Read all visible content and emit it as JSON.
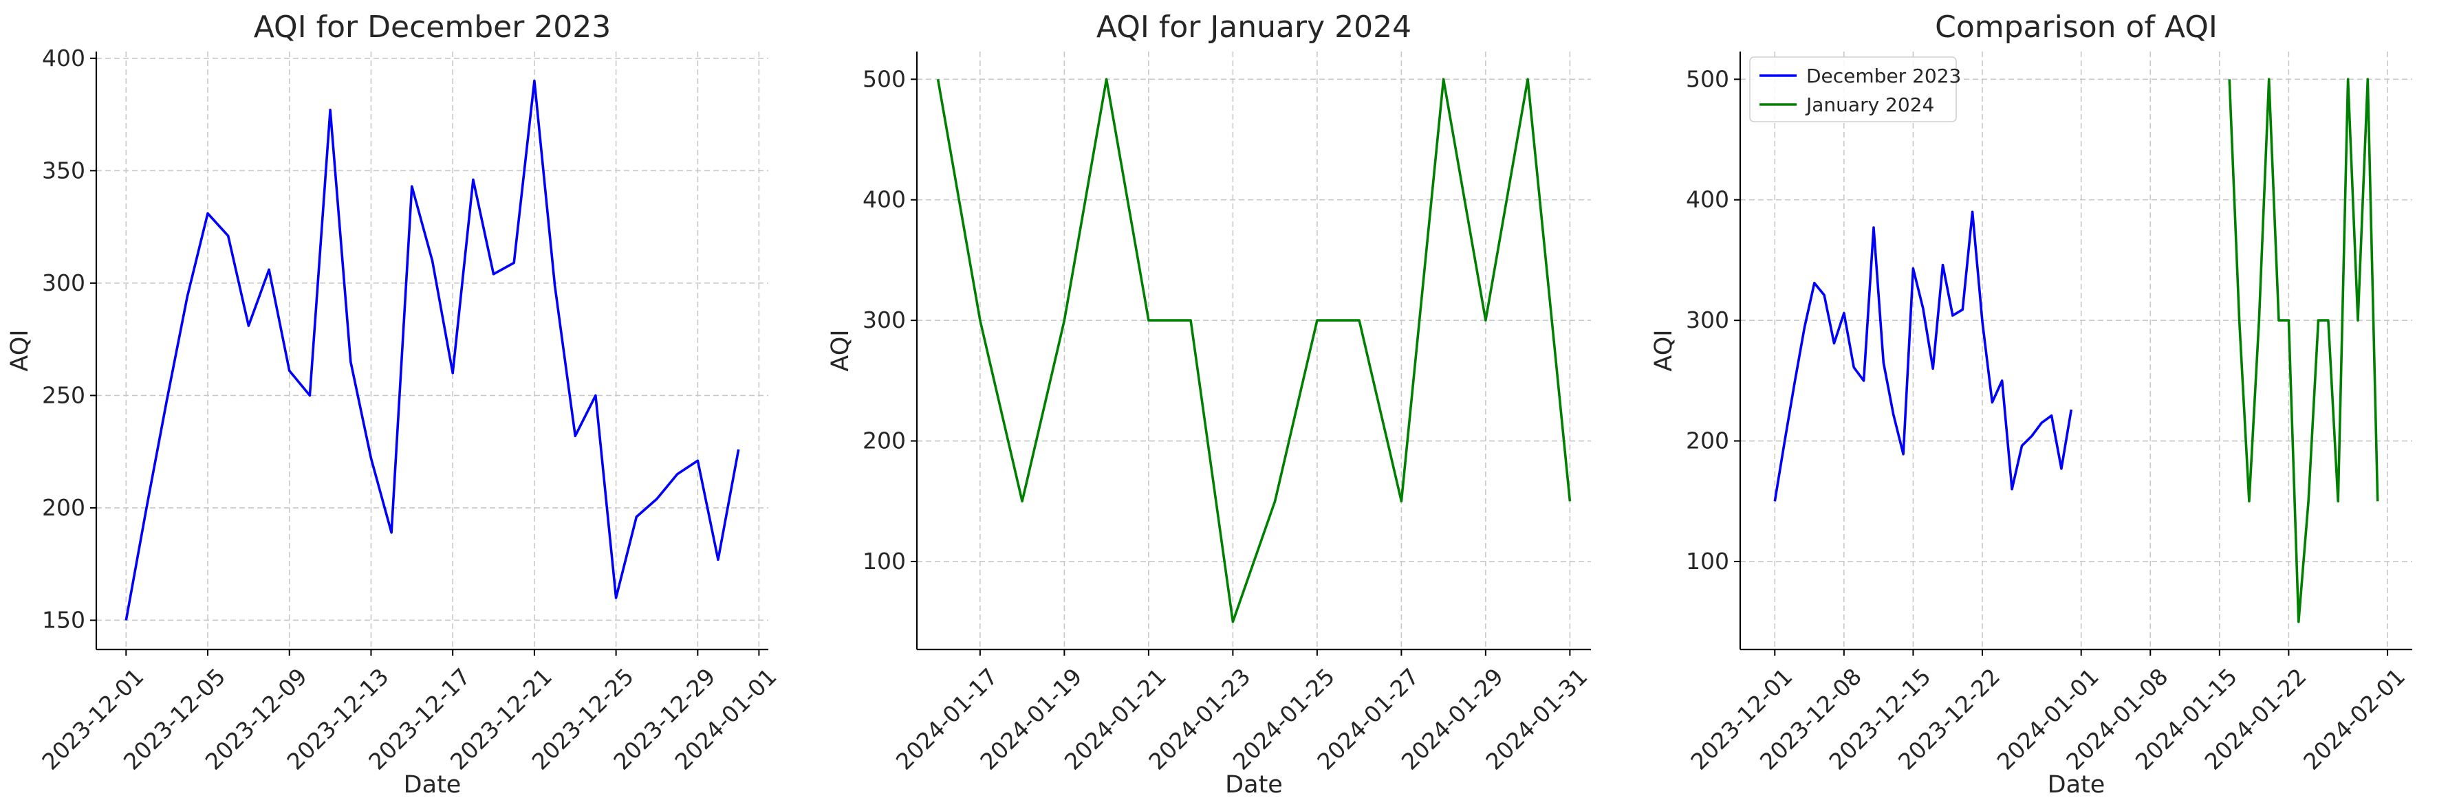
{
  "chart_data": [
    {
      "type": "line",
      "title": "AQI for December 2023",
      "xlabel": "Date",
      "ylabel": "AQI",
      "ylim": [
        137,
        403
      ],
      "xlim": [
        "2023-11-29T13:00",
        "2024-01-01T11:00"
      ],
      "yticks": [
        150,
        200,
        250,
        300,
        350,
        400
      ],
      "xticks": [
        "2023-12-01",
        "2023-12-05",
        "2023-12-09",
        "2023-12-13",
        "2023-12-17",
        "2023-12-21",
        "2023-12-25",
        "2023-12-29",
        "2024-01-01"
      ],
      "grid": true,
      "series": [
        {
          "color": "#0000ff",
          "points": [
            [
              "2023-12-01",
              150
            ],
            [
              "2023-12-02",
              200
            ],
            [
              "2023-12-03",
              248
            ],
            [
              "2023-12-04",
              294
            ],
            [
              "2023-12-05",
              331
            ],
            [
              "2023-12-06",
              321
            ],
            [
              "2023-12-07",
              281
            ],
            [
              "2023-12-08",
              306
            ],
            [
              "2023-12-09",
              261
            ],
            [
              "2023-12-10",
              250
            ],
            [
              "2023-12-11",
              377
            ],
            [
              "2023-12-12",
              265
            ],
            [
              "2023-12-13",
              222
            ],
            [
              "2023-12-14",
              189
            ],
            [
              "2023-12-15",
              343
            ],
            [
              "2023-12-16",
              310
            ],
            [
              "2023-12-17",
              260
            ],
            [
              "2023-12-18",
              346
            ],
            [
              "2023-12-19",
              304
            ],
            [
              "2023-12-20",
              309
            ],
            [
              "2023-12-21",
              390
            ],
            [
              "2023-12-22",
              299
            ],
            [
              "2023-12-23",
              232
            ],
            [
              "2023-12-24",
              250
            ],
            [
              "2023-12-25",
              160
            ],
            [
              "2023-12-26",
              196
            ],
            [
              "2023-12-27",
              204
            ],
            [
              "2023-12-28",
              215
            ],
            [
              "2023-12-29",
              221
            ],
            [
              "2023-12-30",
              177
            ],
            [
              "2023-12-31",
              226
            ]
          ]
        }
      ]
    },
    {
      "type": "line",
      "title": "AQI for January 2024",
      "xlabel": "Date",
      "ylabel": "AQI",
      "ylim": [
        27,
        523
      ],
      "xlim": [
        "2024-01-15T12:00",
        "2024-01-31T12:00"
      ],
      "yticks": [
        100,
        200,
        300,
        400,
        500
      ],
      "xticks": [
        "2024-01-17",
        "2024-01-19",
        "2024-01-21",
        "2024-01-23",
        "2024-01-25",
        "2024-01-27",
        "2024-01-29",
        "2024-01-31"
      ],
      "grid": true,
      "series": [
        {
          "color": "#008000",
          "points": [
            [
              "2024-01-16",
              500
            ],
            [
              "2024-01-17",
              300
            ],
            [
              "2024-01-18",
              150
            ],
            [
              "2024-01-19",
              300
            ],
            [
              "2024-01-20",
              500
            ],
            [
              "2024-01-21",
              300
            ],
            [
              "2024-01-22",
              300
            ],
            [
              "2024-01-23",
              50
            ],
            [
              "2024-01-24",
              150
            ],
            [
              "2024-01-25",
              300
            ],
            [
              "2024-01-26",
              300
            ],
            [
              "2024-01-27",
              150
            ],
            [
              "2024-01-28",
              500
            ],
            [
              "2024-01-29",
              300
            ],
            [
              "2024-01-30",
              500
            ],
            [
              "2024-01-31",
              150
            ]
          ]
        }
      ]
    },
    {
      "type": "line",
      "title": "Comparison of AQI",
      "xlabel": "Date",
      "ylabel": "AQI",
      "ylim": [
        27,
        523
      ],
      "xlim": [
        "2023-11-27T12:00",
        "2024-02-03T12:00"
      ],
      "yticks": [
        100,
        200,
        300,
        400,
        500
      ],
      "xticks": [
        "2023-12-01",
        "2023-12-08",
        "2023-12-15",
        "2023-12-22",
        "2024-01-01",
        "2024-01-08",
        "2024-01-15",
        "2024-01-22",
        "2024-02-01"
      ],
      "grid": true,
      "legend": "top-left",
      "series": [
        {
          "name": "December 2023",
          "color": "#0000ff",
          "points": [
            [
              "2023-12-01",
              150
            ],
            [
              "2023-12-02",
              200
            ],
            [
              "2023-12-03",
              248
            ],
            [
              "2023-12-04",
              294
            ],
            [
              "2023-12-05",
              331
            ],
            [
              "2023-12-06",
              321
            ],
            [
              "2023-12-07",
              281
            ],
            [
              "2023-12-08",
              306
            ],
            [
              "2023-12-09",
              261
            ],
            [
              "2023-12-10",
              250
            ],
            [
              "2023-12-11",
              377
            ],
            [
              "2023-12-12",
              265
            ],
            [
              "2023-12-13",
              222
            ],
            [
              "2023-12-14",
              189
            ],
            [
              "2023-12-15",
              343
            ],
            [
              "2023-12-16",
              310
            ],
            [
              "2023-12-17",
              260
            ],
            [
              "2023-12-18",
              346
            ],
            [
              "2023-12-19",
              304
            ],
            [
              "2023-12-20",
              309
            ],
            [
              "2023-12-21",
              390
            ],
            [
              "2023-12-22",
              299
            ],
            [
              "2023-12-23",
              232
            ],
            [
              "2023-12-24",
              250
            ],
            [
              "2023-12-25",
              160
            ],
            [
              "2023-12-26",
              196
            ],
            [
              "2023-12-27",
              204
            ],
            [
              "2023-12-28",
              215
            ],
            [
              "2023-12-29",
              221
            ],
            [
              "2023-12-30",
              177
            ],
            [
              "2023-12-31",
              226
            ]
          ]
        },
        {
          "name": "January 2024",
          "color": "#008000",
          "points": [
            [
              "2024-01-16",
              500
            ],
            [
              "2024-01-17",
              300
            ],
            [
              "2024-01-18",
              150
            ],
            [
              "2024-01-19",
              300
            ],
            [
              "2024-01-20",
              500
            ],
            [
              "2024-01-21",
              300
            ],
            [
              "2024-01-22",
              300
            ],
            [
              "2024-01-23",
              50
            ],
            [
              "2024-01-24",
              150
            ],
            [
              "2024-01-25",
              300
            ],
            [
              "2024-01-26",
              300
            ],
            [
              "2024-01-27",
              150
            ],
            [
              "2024-01-28",
              500
            ],
            [
              "2024-01-29",
              300
            ],
            [
              "2024-01-30",
              500
            ],
            [
              "2024-01-31",
              150
            ]
          ]
        }
      ]
    }
  ]
}
